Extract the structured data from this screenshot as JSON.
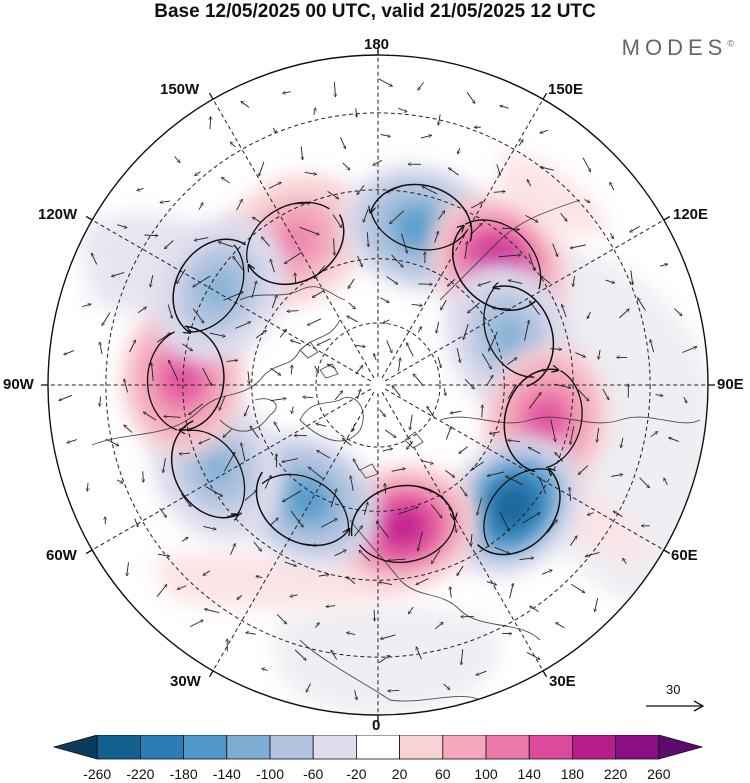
{
  "title": "Base 12/05/2025 00 UTC, valid 21/05/2025 12 UTC",
  "brand": "MODES",
  "brand_mark": "©",
  "longitude_labels": {
    "top": "180",
    "top_left": "150W",
    "top_right": "150E",
    "upper_left": "120W",
    "upper_right": "120E",
    "left": "90W",
    "right": "90E",
    "lower_left": "60W",
    "lower_right": "60E",
    "bottom_left": "30W",
    "bottom_right": "30E",
    "bottom": "0"
  },
  "reference_vector": {
    "label": "30"
  },
  "colorbar": {
    "tick_labels": [
      "-260",
      "-220",
      "-180",
      "-140",
      "-100",
      "-60",
      "-20",
      "20",
      "60",
      "100",
      "140",
      "180",
      "220",
      "260"
    ],
    "colors": [
      "#0d3b5e",
      "#14608f",
      "#2b7bb6",
      "#4e97c8",
      "#7eaed4",
      "#b3c4e0",
      "#dedced",
      "#ffffff",
      "#f8d3d6",
      "#f3a9bb",
      "#ec79a9",
      "#de4a9b",
      "#b91d8b",
      "#8a0f83",
      "#5a0b6b"
    ]
  },
  "anomaly_centers": [
    {
      "lon": -150,
      "lat": 51,
      "level": 100
    },
    {
      "lon": 165,
      "lat": 52,
      "level": -140
    },
    {
      "lon": 135,
      "lat": 50,
      "level": 180
    },
    {
      "lon": 110,
      "lat": 57,
      "level": -100
    },
    {
      "lon": 78,
      "lat": 50,
      "level": 140
    },
    {
      "lon": 48,
      "lat": 48,
      "level": -220
    },
    {
      "lon": 10,
      "lat": 56,
      "level": 180
    },
    {
      "lon": -32,
      "lat": 58,
      "level": -140
    },
    {
      "lon": -63,
      "lat": 48,
      "level": -100
    },
    {
      "lon": -92,
      "lat": 45,
      "level": 140
    },
    {
      "lon": -121,
      "lat": 47,
      "level": -100
    }
  ]
}
